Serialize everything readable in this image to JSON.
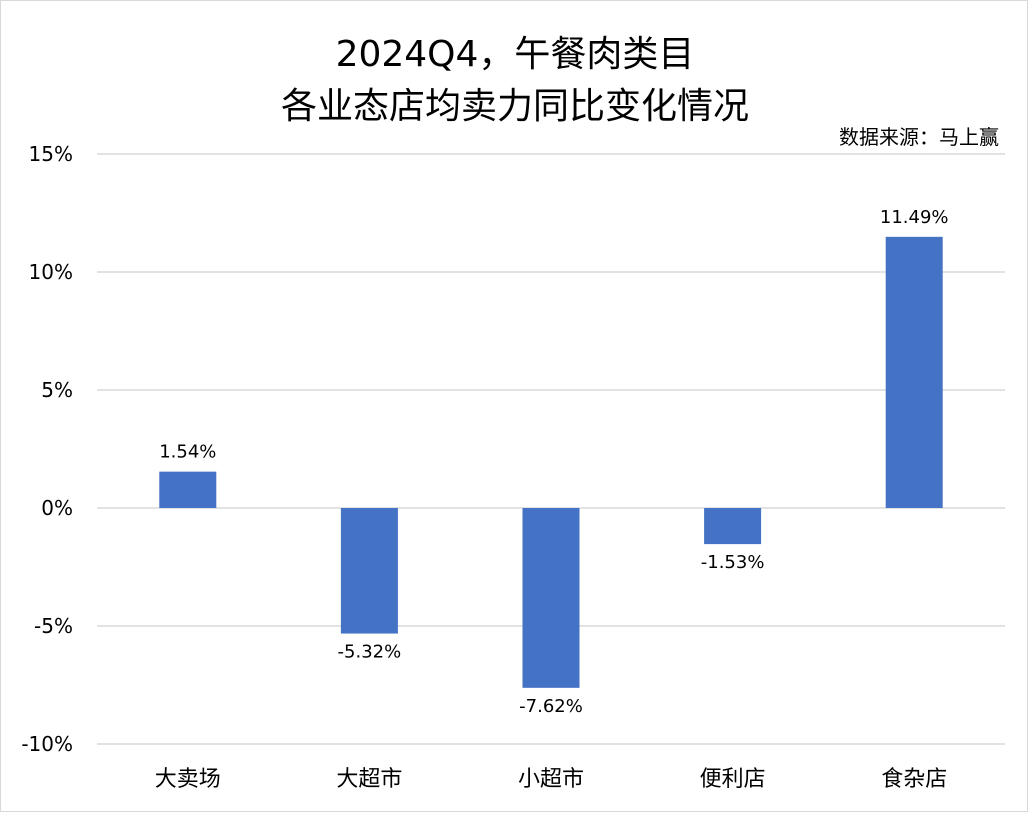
{
  "chart_data": {
    "type": "bar",
    "title": "2024Q4，午餐肉类目",
    "subtitle": "各业态店均卖力同比变化情况",
    "source": "数据来源：马上赢",
    "categories": [
      "大卖场",
      "大超市",
      "小超市",
      "便利店",
      "食杂店"
    ],
    "values": [
      1.54,
      -5.32,
      -7.62,
      -1.53,
      11.49
    ],
    "data_labels": [
      "1.54%",
      "-5.32%",
      "-7.62%",
      "-1.53%",
      "11.49%"
    ],
    "y_ticks": [
      15,
      10,
      5,
      0,
      -5,
      -10
    ],
    "y_tick_labels": [
      "15%",
      "10%",
      "5%",
      "0%",
      "-5%",
      "-10%"
    ],
    "ylim": [
      -10,
      15
    ],
    "grid": true,
    "legend": "none",
    "colors": {
      "bar": "#4472c4",
      "grid": "#d9d9d9"
    }
  }
}
